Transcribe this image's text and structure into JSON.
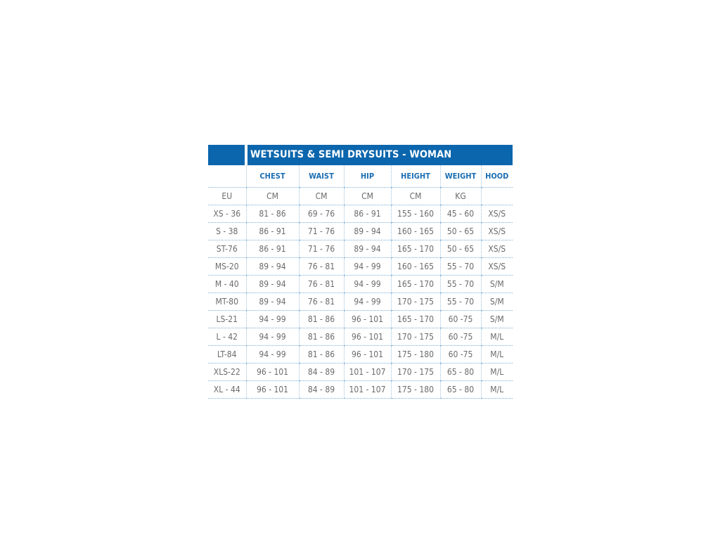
{
  "title": "WETSUITS & SEMI DRYSUITS - WOMAN",
  "columns": [
    "",
    "CHEST",
    "WAIST",
    "HIP",
    "HEIGHT",
    "WEIGHT",
    "HOOD"
  ],
  "units": [
    "EU",
    "CM",
    "CM",
    "CM",
    "CM",
    "KG",
    ""
  ],
  "rows": [
    [
      "XS - 36",
      "81 - 86",
      "69 - 76",
      "86 - 91",
      "155 - 160",
      "45 - 60",
      "XS/S"
    ],
    [
      "S - 38",
      "86 - 91",
      "71 - 76",
      "89 - 94",
      "160 - 165",
      "50 - 65",
      "XS/S"
    ],
    [
      "ST-76",
      "86 - 91",
      "71 - 76",
      "89 - 94",
      "165 - 170",
      "50 - 65",
      "XS/S"
    ],
    [
      "MS-20",
      "89 - 94",
      "76 - 81",
      "94 - 99",
      "160 - 165",
      "55 - 70",
      "XS/S"
    ],
    [
      "M - 40",
      "89 - 94",
      "76 - 81",
      "94 - 99",
      "165 - 170",
      "55 - 70",
      "S/M"
    ],
    [
      "MT-80",
      "89 - 94",
      "76 - 81",
      "94 - 99",
      "170 - 175",
      "55 - 70",
      "S/M"
    ],
    [
      "LS-21",
      "94 - 99",
      "81 - 86",
      "96 - 101",
      "165 - 170",
      "60 -75",
      "S/M"
    ],
    [
      "L - 42",
      "94 - 99",
      "81 - 86",
      "96 - 101",
      "170 - 175",
      "60 -75",
      "M/L"
    ],
    [
      "LT-84",
      "94 - 99",
      "81 - 86",
      "96 - 101",
      "175 - 180",
      "60 -75",
      "M/L"
    ],
    [
      "XLS-22",
      "96 - 101",
      "84 - 89",
      "101 - 107",
      "170 - 175",
      "65 - 80",
      "M/L"
    ],
    [
      "XL - 44",
      "96 - 101",
      "84 - 89",
      "101 - 107",
      "175 - 180",
      "65 - 80",
      "M/L"
    ]
  ],
  "colors": {
    "header_bg": "#0b66ad",
    "header_text": "#1b6db2",
    "body_text": "#6b6b6b"
  }
}
